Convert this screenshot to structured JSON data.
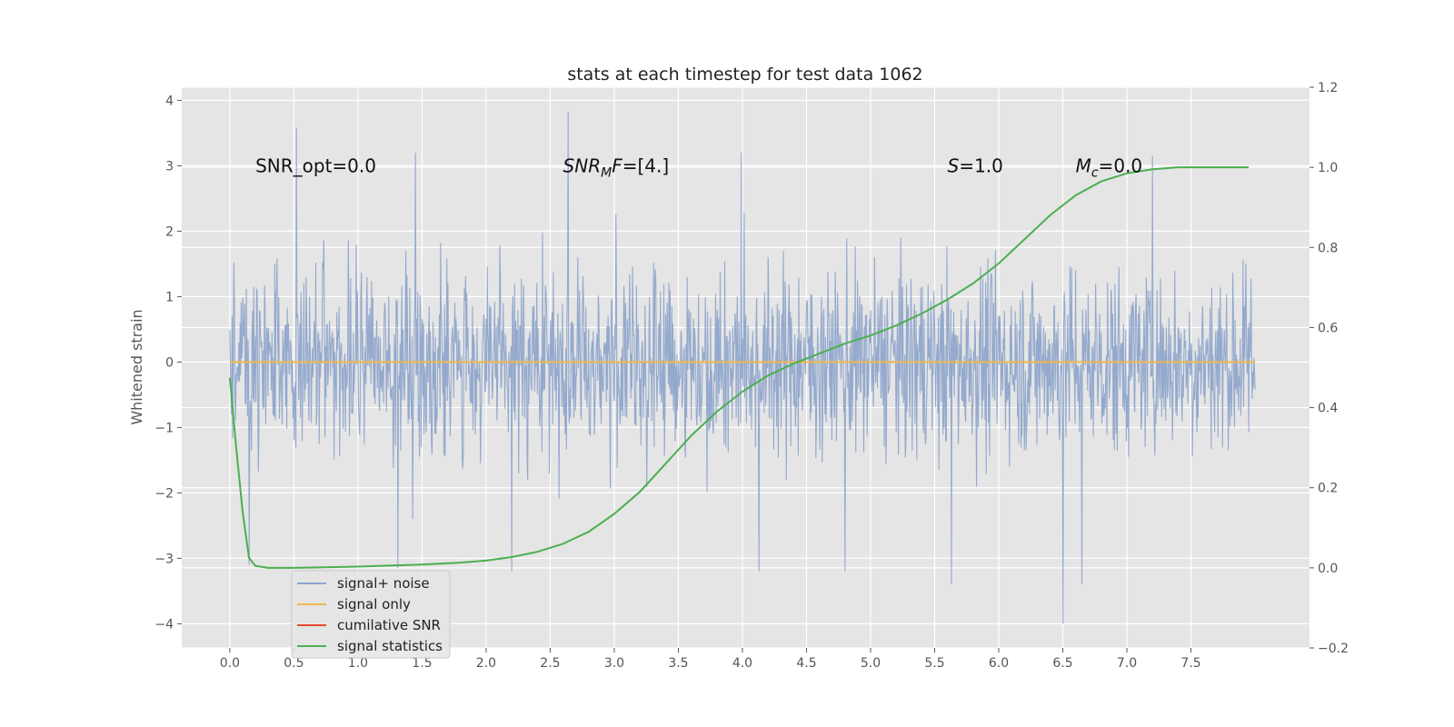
{
  "chart_data": {
    "type": "line",
    "title": "stats at each timestep for test data 1062",
    "xlabel": "",
    "ylabel": "Whitened strain",
    "y2label": "",
    "xlim": [
      -0.375,
      8.425
    ],
    "ylim": [
      -4.37,
      4.2
    ],
    "y2lim": [
      -0.2,
      1.2
    ],
    "x_ticks": [
      "0.0",
      "0.5",
      "1.0",
      "1.5",
      "2.0",
      "2.5",
      "3.0",
      "3.5",
      "4.0",
      "4.5",
      "5.0",
      "5.5",
      "6.0",
      "6.5",
      "7.0",
      "7.5"
    ],
    "y_ticks": [
      "4",
      "3",
      "2",
      "1",
      "0",
      "−1",
      "−2",
      "−3",
      "−4"
    ],
    "y2_ticks": [
      "1.2",
      "1.0",
      "0.8",
      "0.6",
      "0.4",
      "0.2",
      "0.0",
      "−0.2"
    ],
    "grid": true,
    "background": "#e5e5e5",
    "legend_position": "lower-left",
    "annotations": [
      {
        "text": "SNR_opt=0.0",
        "x": 0.2,
        "y": 3.0
      },
      {
        "text": "SNR",
        "sub": "M",
        "tail": "F=[4.]",
        "italic": true,
        "x": 2.6,
        "y": 3.0
      },
      {
        "text": "S",
        "tail": "=1.0",
        "italic": true,
        "x": 5.6,
        "y": 3.0
      },
      {
        "text": "M",
        "sub": "c",
        "tail": "=0.0",
        "italic": true,
        "x": 6.6,
        "y": 3.0
      }
    ],
    "series": [
      {
        "name": "signal+ noise",
        "color": "#8fa5cb",
        "axis": "left",
        "kind": "noise",
        "x_range": [
          0,
          8
        ],
        "typical_range": [
          -2.2,
          2.2
        ],
        "peaks": [
          {
            "x": 0.52,
            "y": 3.58
          },
          {
            "x": 2.64,
            "y": 3.83
          },
          {
            "x": 1.45,
            "y": 3.2
          },
          {
            "x": 3.99,
            "y": 3.2
          },
          {
            "x": 7.2,
            "y": 3.15
          },
          {
            "x": 6.5,
            "y": -4.0
          },
          {
            "x": 5.63,
            "y": -3.4
          },
          {
            "x": 2.2,
            "y": -3.2
          },
          {
            "x": 1.31,
            "y": -3.15
          },
          {
            "x": 4.13,
            "y": -3.2
          },
          {
            "x": 4.8,
            "y": -3.2
          },
          {
            "x": 0.15,
            "y": -3.1
          },
          {
            "x": 6.65,
            "y": -3.4
          }
        ]
      },
      {
        "name": "signal only",
        "color": "#f0b84e",
        "axis": "left",
        "x": [
          0,
          8
        ],
        "y": [
          0,
          0
        ]
      },
      {
        "name": "cumilative SNR",
        "color": "#e24a33",
        "axis": "left",
        "x": [],
        "y": []
      },
      {
        "name": "signal statistics",
        "color": "#4caf50",
        "axis": "right",
        "x": [
          0.0,
          0.05,
          0.1,
          0.15,
          0.2,
          0.3,
          0.5,
          1.0,
          1.5,
          1.8,
          2.0,
          2.2,
          2.4,
          2.6,
          2.8,
          3.0,
          3.2,
          3.4,
          3.6,
          3.8,
          4.0,
          4.2,
          4.4,
          4.6,
          4.8,
          5.0,
          5.2,
          5.4,
          5.6,
          5.8,
          6.0,
          6.2,
          6.4,
          6.6,
          6.8,
          7.0,
          7.2,
          7.4,
          7.6,
          7.95
        ],
        "y": [
          0.475,
          0.3,
          0.14,
          0.025,
          0.005,
          0.0,
          0.0,
          0.003,
          0.008,
          0.013,
          0.018,
          0.027,
          0.04,
          0.06,
          0.09,
          0.135,
          0.19,
          0.26,
          0.33,
          0.39,
          0.44,
          0.48,
          0.51,
          0.535,
          0.56,
          0.58,
          0.605,
          0.635,
          0.67,
          0.71,
          0.76,
          0.82,
          0.88,
          0.93,
          0.965,
          0.985,
          0.995,
          1.0,
          1.0,
          1.0
        ]
      }
    ]
  }
}
